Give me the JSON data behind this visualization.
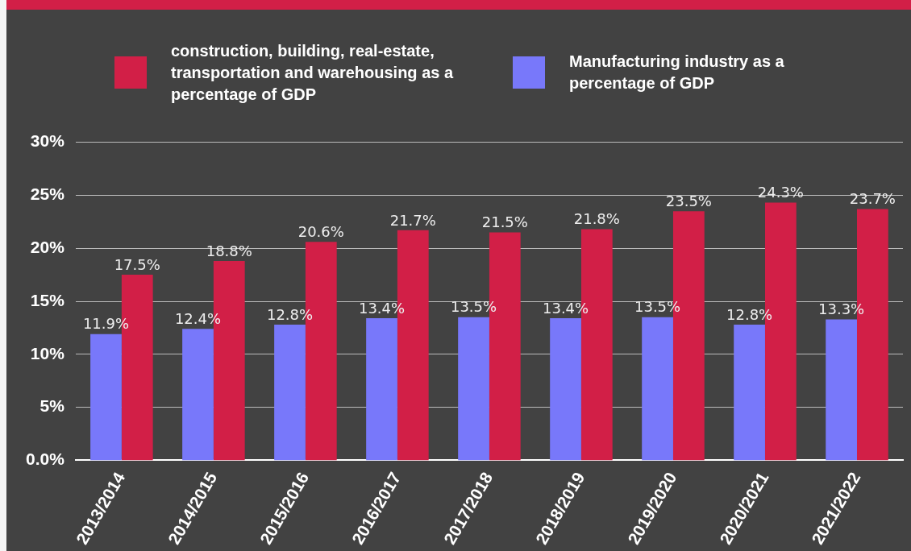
{
  "chart_data": {
    "type": "bar",
    "categories": [
      "2013/2014",
      "2014/2015",
      "2015/2016",
      "2016/2017",
      "2017/2018",
      "2018/2019",
      "2019/2020",
      "2020/2021",
      "2021/2022"
    ],
    "series": [
      {
        "name": "Manufacturing industry as a percentage of GDP",
        "color": "#7878fa",
        "values": [
          11.9,
          12.4,
          12.8,
          13.4,
          13.5,
          13.4,
          13.5,
          12.8,
          13.3
        ],
        "value_labels": [
          "11.9%",
          "12.4%",
          "12.8%",
          "13.4%",
          "13.5%",
          "13.4%",
          "13.5%",
          "12.8%",
          "13.3%"
        ]
      },
      {
        "name": "construction, building, real-estate, transportation and warehousing as a percentage of GDP",
        "color": "#d21f47",
        "values": [
          17.5,
          18.8,
          20.6,
          21.7,
          21.5,
          21.8,
          23.5,
          24.3,
          23.7
        ],
        "value_labels": [
          "17.5%",
          "18.8%",
          "20.6%",
          "21.7%",
          "21.5%",
          "21.8%",
          "23.5%",
          "24.3%",
          "23.7%"
        ]
      }
    ],
    "ylim": [
      0,
      30
    ],
    "yticks": [
      {
        "value": 0,
        "label": "0.0%"
      },
      {
        "value": 5,
        "label": "5%"
      },
      {
        "value": 10,
        "label": "10%"
      },
      {
        "value": 15,
        "label": "15%"
      },
      {
        "value": 20,
        "label": "20%"
      },
      {
        "value": 25,
        "label": "25%"
      },
      {
        "value": 30,
        "label": "30%"
      }
    ],
    "grid": "y",
    "legend": "top"
  }
}
